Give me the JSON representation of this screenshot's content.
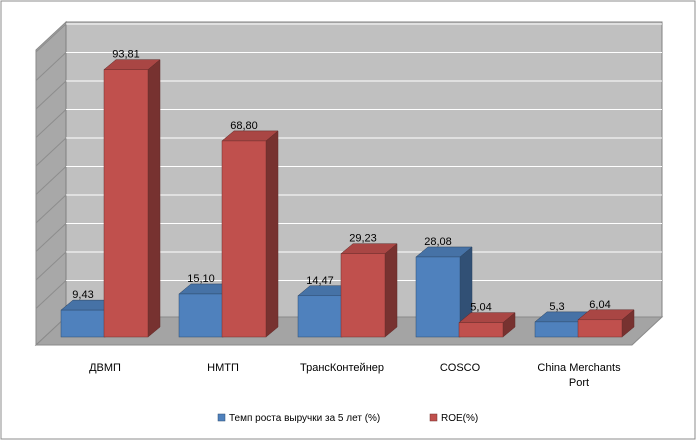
{
  "chart_data": {
    "type": "bar",
    "style": "3d-clustered-column",
    "categories": [
      "ДВМП",
      "НМТП",
      "ТрансКонтейнер",
      "COSCO",
      "China Merchants Port"
    ],
    "category_label_lines": [
      [
        "ДВМП"
      ],
      [
        "НМТП"
      ],
      [
        "ТрансКонтейнер"
      ],
      [
        "COSCO"
      ],
      [
        "China Merchants",
        "Port"
      ]
    ],
    "series": [
      {
        "name": "Темп роста выручки за 5 лет (%)",
        "values": [
          9.43,
          15.1,
          14.47,
          28.08,
          5.3
        ],
        "labels": [
          "9,43",
          "15,10",
          "14,47",
          "28,08",
          "5,3"
        ],
        "color": "#4F81BD"
      },
      {
        "name": "ROE(%)",
        "values": [
          93.81,
          68.8,
          29.23,
          5.04,
          6.04
        ],
        "labels": [
          "93,81",
          "68,80",
          "29,23",
          "5,04",
          "6,04"
        ],
        "color": "#C0504D"
      }
    ],
    "ylim": [
      0,
      100
    ],
    "grid": true,
    "legend_position": "bottom",
    "background": "#C0C0C0",
    "frame": "#808080"
  }
}
